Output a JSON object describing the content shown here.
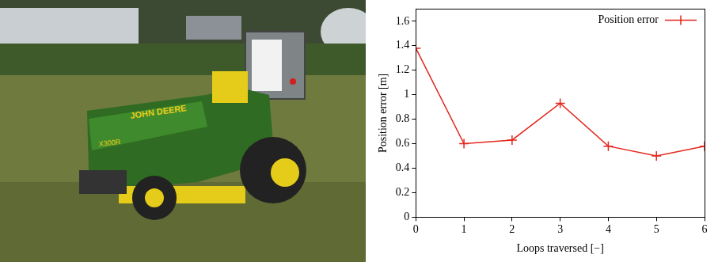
{
  "photo": {
    "texts": [
      "JOHN DEERE",
      "X300R"
    ]
  },
  "chart_data": {
    "type": "line",
    "x_label": "Loops traversed [−]",
    "y_label": "Position error [m]",
    "x": [
      0,
      1,
      2,
      3,
      4,
      5,
      6
    ],
    "series": [
      {
        "name": "Position error",
        "color": "#e3261c",
        "marker": "cross",
        "line_style": "solid",
        "values": [
          1.38,
          0.6,
          0.63,
          0.93,
          0.58,
          0.5,
          0.58
        ]
      }
    ],
    "xlim": [
      0,
      6
    ],
    "xticks": [
      0,
      1,
      2,
      3,
      4,
      5,
      6
    ],
    "ylim": [
      0,
      1.7
    ],
    "yticks": [
      0,
      0.2,
      0.4,
      0.6,
      0.8,
      1,
      1.2,
      1.4,
      1.6
    ],
    "grid": false,
    "legend": "upper right"
  }
}
